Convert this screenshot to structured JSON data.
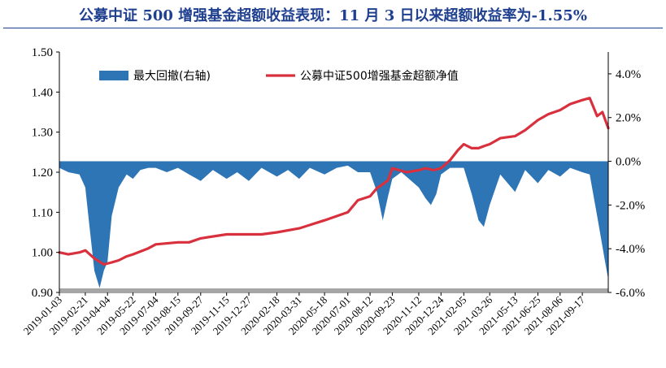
{
  "title": "公募中证 500 增强基金超额收益表现：11 月 3 日以来超额收益率为-1.55%",
  "chart_data": {
    "type": "line",
    "title": "公募中证 500 增强基金超额收益表现：11 月 3 日以来超额收益率为-1.55%",
    "legend_position": "top",
    "grid": false,
    "x_ticks": [
      "2019-01-03",
      "2019-02-21",
      "2019-04-04",
      "2019-05-22",
      "2019-07-04",
      "2019-08-15",
      "2019-09-27",
      "2019-11-15",
      "2019-12-27",
      "2020-02-18",
      "2020-03-31",
      "2020-05-18",
      "2020-07-01",
      "2020-08-12",
      "2020-09-23",
      "2020-11-12",
      "2020-12-24",
      "2021-02-05",
      "2021-03-26",
      "2021-05-13",
      "2021-06-25",
      "2021-08-06",
      "2021-09-17"
    ],
    "y_left": {
      "ticks": [
        "0.90",
        "1.00",
        "1.10",
        "1.20",
        "1.30",
        "1.40",
        "1.50"
      ],
      "range": [
        0.9,
        1.5
      ]
    },
    "y_right": {
      "ticks": [
        "-6.0%",
        "-4.0%",
        "-2.0%",
        "0.0%",
        "2.0%",
        "4.0%"
      ],
      "range": [
        -6.0,
        5.0
      ]
    },
    "series": [
      {
        "name": "最大回撤(右轴)",
        "kind": "area",
        "axis": "right",
        "color": "#2e75b6",
        "x": [
          "2019-01-03",
          "2019-01-20",
          "2019-02-10",
          "2019-02-21",
          "2019-03-01",
          "2019-03-10",
          "2019-03-20",
          "2019-03-28",
          "2019-04-04",
          "2019-04-12",
          "2019-04-25",
          "2019-05-10",
          "2019-05-22",
          "2019-06-05",
          "2019-06-20",
          "2019-07-04",
          "2019-07-25",
          "2019-08-15",
          "2019-09-05",
          "2019-09-27",
          "2019-10-20",
          "2019-11-15",
          "2019-12-05",
          "2019-12-27",
          "2020-01-20",
          "2020-02-18",
          "2020-03-10",
          "2020-03-31",
          "2020-04-20",
          "2020-05-18",
          "2020-06-10",
          "2020-07-01",
          "2020-07-20",
          "2020-08-12",
          "2020-08-25",
          "2020-09-05",
          "2020-09-15",
          "2020-09-23",
          "2020-10-10",
          "2020-11-12",
          "2020-11-25",
          "2020-12-05",
          "2020-12-15",
          "2020-12-24",
          "2021-01-10",
          "2021-02-05",
          "2021-02-20",
          "2021-03-05",
          "2021-03-15",
          "2021-03-26",
          "2021-04-15",
          "2021-05-13",
          "2021-06-01",
          "2021-06-25",
          "2021-07-15",
          "2021-08-06",
          "2021-08-25",
          "2021-09-17",
          "2021-10-01",
          "2021-10-15",
          "2021-10-30",
          "2021-11-05"
        ],
        "values": [
          -0.3,
          -0.5,
          -0.6,
          -1.2,
          -3.0,
          -5.0,
          -5.8,
          -5.0,
          -4.6,
          -2.5,
          -1.2,
          -0.6,
          -0.8,
          -0.4,
          -0.3,
          -0.3,
          -0.5,
          -0.3,
          -0.6,
          -0.9,
          -0.4,
          -0.8,
          -0.5,
          -0.9,
          -0.3,
          -0.7,
          -0.4,
          -0.8,
          -0.3,
          -0.6,
          -0.3,
          -0.2,
          -0.5,
          -0.5,
          -1.4,
          -2.7,
          -1.6,
          -0.8,
          -0.5,
          -1.2,
          -1.7,
          -2.0,
          -1.5,
          -0.6,
          -0.3,
          -0.3,
          -1.5,
          -2.7,
          -3.0,
          -2.0,
          -0.6,
          -1.4,
          -0.4,
          -1.0,
          -0.4,
          -0.7,
          -0.3,
          -0.5,
          -0.6,
          -2.5,
          -4.6,
          -5.4
        ]
      },
      {
        "name": "公募中证500增强基金超额净值",
        "kind": "line",
        "axis": "left",
        "color": "#d9303e",
        "x": [
          "2019-01-03",
          "2019-01-20",
          "2019-02-10",
          "2019-02-21",
          "2019-03-10",
          "2019-03-28",
          "2019-04-12",
          "2019-04-25",
          "2019-05-10",
          "2019-05-22",
          "2019-06-20",
          "2019-07-04",
          "2019-08-15",
          "2019-09-05",
          "2019-09-27",
          "2019-11-15",
          "2019-12-27",
          "2020-01-20",
          "2020-02-18",
          "2020-03-31",
          "2020-05-18",
          "2020-07-01",
          "2020-07-20",
          "2020-08-12",
          "2020-08-25",
          "2020-09-05",
          "2020-09-15",
          "2020-09-23",
          "2020-10-20",
          "2020-11-12",
          "2020-11-25",
          "2020-12-10",
          "2020-12-24",
          "2021-01-10",
          "2021-01-25",
          "2021-02-05",
          "2021-02-20",
          "2021-03-05",
          "2021-03-15",
          "2021-03-26",
          "2021-04-15",
          "2021-05-13",
          "2021-06-01",
          "2021-06-25",
          "2021-07-15",
          "2021-08-06",
          "2021-08-25",
          "2021-09-17",
          "2021-10-01",
          "2021-10-15",
          "2021-10-25",
          "2021-11-05"
        ],
        "values": [
          1.0,
          0.995,
          1.0,
          1.005,
          0.985,
          0.97,
          0.975,
          0.98,
          0.99,
          0.995,
          1.01,
          1.02,
          1.025,
          1.025,
          1.035,
          1.045,
          1.045,
          1.045,
          1.05,
          1.06,
          1.08,
          1.1,
          1.13,
          1.14,
          1.16,
          1.17,
          1.18,
          1.21,
          1.2,
          1.205,
          1.21,
          1.205,
          1.21,
          1.23,
          1.255,
          1.27,
          1.26,
          1.26,
          1.265,
          1.27,
          1.285,
          1.29,
          1.305,
          1.33,
          1.345,
          1.355,
          1.37,
          1.38,
          1.385,
          1.34,
          1.35,
          1.31
        ]
      }
    ]
  }
}
